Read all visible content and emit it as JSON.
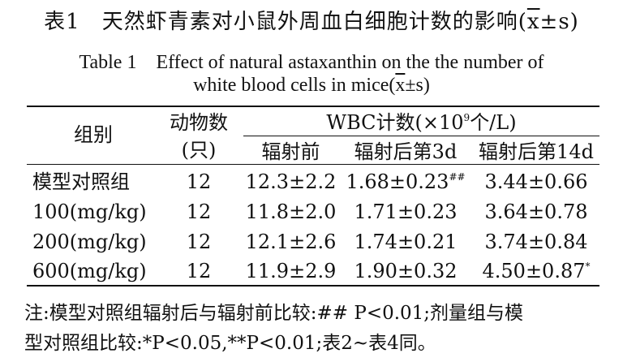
{
  "caption": {
    "cn_prefix": "表1　天然虾青素对小鼠外周血白细胞计数的影响(",
    "en_line1": "Table 1　Effect of natural astaxanthin on the the number of",
    "en_line2_prefix": "white blood cells in mice(",
    "mean_symbol": "x",
    "pm_s": "±s",
    "close_paren": ")"
  },
  "table": {
    "header": {
      "group": "组别",
      "animals_line1": "动物数",
      "animals_line2": "(只)",
      "wbc_prefix": "WBC计数(×10",
      "wbc_exp": "9",
      "wbc_suffix": "个/L)",
      "before": "辐射前",
      "after3": "辐射后第3d",
      "after14": "辐射后第14d"
    },
    "rows": [
      {
        "group": "模型对照组",
        "n": "12",
        "before": "12.3±2.2",
        "after3": "1.68±0.23",
        "after3_mark": "##",
        "after14": "3.44±0.66",
        "after14_mark": ""
      },
      {
        "group": "100(mg/kg)",
        "n": "12",
        "before": "11.8±2.0",
        "after3": "1.71±0.23",
        "after3_mark": "",
        "after14": "3.64±0.78",
        "after14_mark": ""
      },
      {
        "group": "200(mg/kg)",
        "n": "12",
        "before": "12.1±2.6",
        "after3": "1.74±0.21",
        "after3_mark": "",
        "after14": "3.74±0.84",
        "after14_mark": ""
      },
      {
        "group": "600(mg/kg)",
        "n": "12",
        "before": "11.9±2.9",
        "after3": "1.90±0.32",
        "after3_mark": "",
        "after14": "4.50±0.87",
        "after14_mark": "*"
      }
    ]
  },
  "note": {
    "line1": "注:模型对照组辐射后与辐射前比较:## P<0.01;剂量组与模",
    "line2": "型对照组比较:*P<0.05,**P<0.01;表2~表4同。"
  }
}
